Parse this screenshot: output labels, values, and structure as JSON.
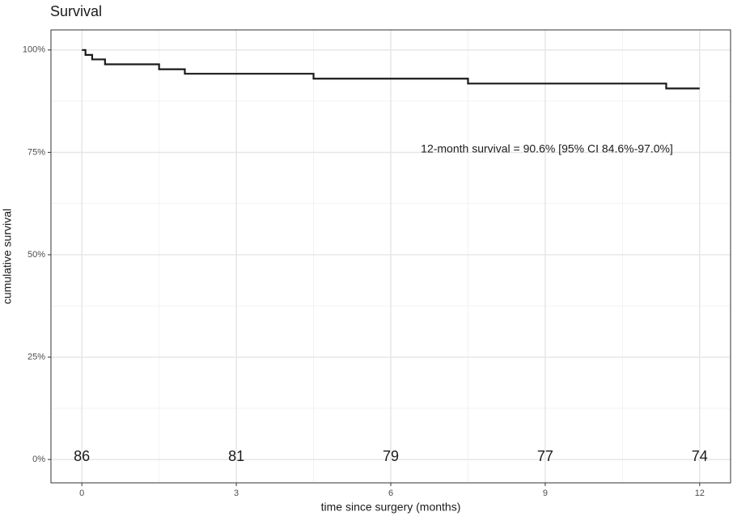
{
  "chart_data": {
    "type": "line",
    "step": "post",
    "title": "Survival",
    "x_label": "time since surgery (months)",
    "y_label": "cumulative survival",
    "annotation": "12-month survival = 90.6% [95% CI 84.6%-97.0%]",
    "x": [
      0,
      0.07,
      0.2,
      0.45,
      1.5,
      2.0,
      4.5,
      7.5,
      11.35,
      12
    ],
    "series": [
      {
        "color": "#1a1a1a",
        "values": [
          100,
          98.8,
          97.7,
          96.5,
          95.3,
          94.2,
          93.0,
          91.8,
          90.6,
          90.6
        ]
      }
    ],
    "risk_table": {
      "x": [
        0,
        3,
        6,
        9,
        12
      ],
      "values": [
        86,
        81,
        79,
        77,
        74
      ]
    },
    "xlim": [
      -0.6,
      12.6
    ],
    "ylim": [
      -5.7,
      104.9
    ],
    "xticks": [
      0,
      3,
      6,
      9,
      12
    ],
    "yticks": [
      {
        "value": 0,
        "label": "0%"
      },
      {
        "value": 25,
        "label": "25%"
      },
      {
        "value": 50,
        "label": "50%"
      },
      {
        "value": 75,
        "label": "75%"
      },
      {
        "value": 100,
        "label": "100%"
      }
    ],
    "grid": true
  }
}
